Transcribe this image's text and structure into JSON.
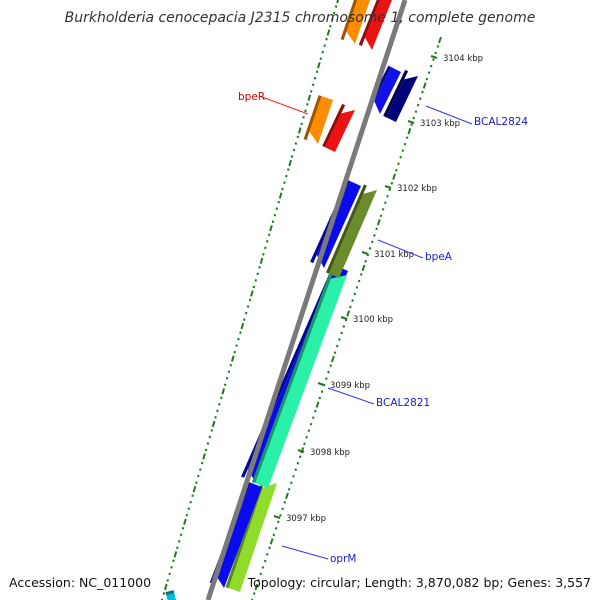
{
  "title": "Burkholderia cenocepacia J2315 chromosome 1, complete genome",
  "footer": {
    "accession": "Accession: NC_011000",
    "stats": "Topology: circular; Length: 3,870,082 bp; Genes: 3,557"
  },
  "colors": {
    "backbone": "#7a7a7a",
    "ticks": "#1f7a1f",
    "label_blue": "#1a1acc",
    "label_red": "#cc0000",
    "leader_blue": "#3333ff",
    "leader_red": "#ff2222"
  },
  "ticks": [
    {
      "label": "3097 kbp"
    },
    {
      "label": "3098 kbp"
    },
    {
      "label": "3099 kbp"
    },
    {
      "label": "3100 kbp"
    },
    {
      "label": "3101 kbp"
    },
    {
      "label": "3102 kbp"
    },
    {
      "label": "3103 kbp"
    },
    {
      "label": "3104 kbp"
    }
  ],
  "genes": [
    {
      "color": "#0a0aee"
    },
    {
      "color": "#8fdc2a"
    },
    {
      "color": "#0a0aee"
    },
    {
      "color": "#2af0a8"
    },
    {
      "color": "#0a0aee"
    },
    {
      "color": "#6b8c2a"
    },
    {
      "color": "#ff8c00"
    },
    {
      "color": "#ee1111"
    },
    {
      "color": "#1010e8"
    },
    {
      "color": "#00007a"
    },
    {
      "color": "#ff8c00"
    },
    {
      "color": "#ee1111"
    },
    {
      "color": "#00bcd4"
    }
  ],
  "labels": [
    {
      "text": "bpeR"
    },
    {
      "text": "BCAL2824"
    },
    {
      "text": "bpeA"
    },
    {
      "text": "BCAL2821"
    },
    {
      "text": "oprM"
    }
  ]
}
